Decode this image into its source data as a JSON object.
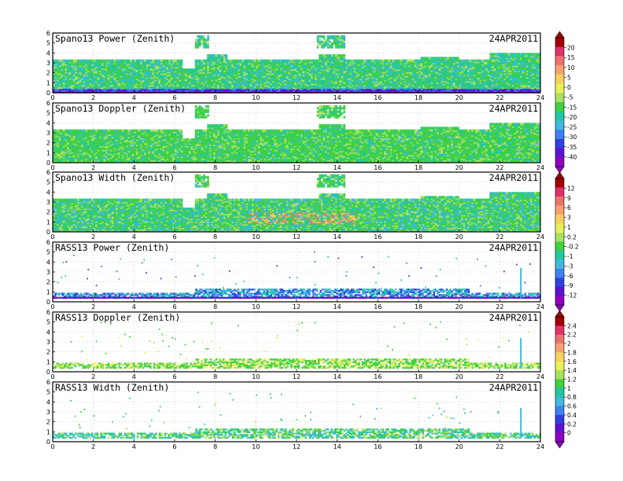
{
  "chart_data": [
    {
      "type": "heatmap",
      "title": "Spano13 Power (Zenith)",
      "date": "24APR2011",
      "x": [
        0,
        2,
        4,
        6,
        8,
        10,
        12,
        14,
        16,
        18,
        20,
        22,
        24
      ],
      "y": [
        0,
        1,
        2,
        3,
        4,
        5,
        6
      ],
      "xlim": [
        0,
        24
      ],
      "ylim": [
        0,
        6
      ],
      "colorbar": 0,
      "kind": "spano",
      "variable": "power"
    },
    {
      "type": "heatmap",
      "title": "Spano13 Doppler (Zenith)",
      "date": "24APR2011",
      "x": [
        0,
        2,
        4,
        6,
        8,
        10,
        12,
        14,
        16,
        18,
        20,
        22,
        24
      ],
      "y": [
        0,
        1,
        2,
        3,
        4,
        5,
        6
      ],
      "xlim": [
        0,
        24
      ],
      "ylim": [
        0,
        6
      ],
      "colorbar": null,
      "kind": "spano",
      "variable": "doppler"
    },
    {
      "type": "heatmap",
      "title": "Spano13 Width (Zenith)",
      "date": "24APR2011",
      "x": [
        0,
        2,
        4,
        6,
        8,
        10,
        12,
        14,
        16,
        18,
        20,
        22,
        24
      ],
      "y": [
        0,
        1,
        2,
        3,
        4,
        5,
        6
      ],
      "xlim": [
        0,
        24
      ],
      "ylim": [
        0,
        6
      ],
      "colorbar": 1,
      "kind": "spano",
      "variable": "width"
    },
    {
      "type": "heatmap",
      "title": "RASS13 Power (Zenith)",
      "date": "24APR2011",
      "x": [
        0,
        2,
        4,
        6,
        8,
        10,
        12,
        14,
        16,
        18,
        20,
        22,
        24
      ],
      "y": [
        0,
        1,
        2,
        3,
        4,
        5,
        6
      ],
      "xlim": [
        0,
        24
      ],
      "ylim": [
        0,
        6
      ],
      "colorbar": null,
      "kind": "rass",
      "variable": "power"
    },
    {
      "type": "heatmap",
      "title": "RASS13 Doppler (Zenith)",
      "date": "24APR2011",
      "x": [
        0,
        2,
        4,
        6,
        8,
        10,
        12,
        14,
        16,
        18,
        20,
        22,
        24
      ],
      "y": [
        0,
        1,
        2,
        3,
        4,
        5,
        6
      ],
      "xlim": [
        0,
        24
      ],
      "ylim": [
        0,
        6
      ],
      "colorbar": 2,
      "kind": "rass",
      "variable": "doppler"
    },
    {
      "type": "heatmap",
      "title": "RASS13 Width (Zenith)",
      "date": "24APR2011",
      "x": [
        0,
        2,
        4,
        6,
        8,
        10,
        12,
        14,
        16,
        18,
        20,
        22,
        24
      ],
      "y": [
        0,
        1,
        2,
        3,
        4,
        5,
        6
      ],
      "xlim": [
        0,
        24
      ],
      "ylim": [
        0,
        6
      ],
      "colorbar": null,
      "kind": "rass",
      "variable": "width"
    }
  ],
  "colorbars": [
    {
      "ticks": [
        "20",
        "15",
        "10",
        "5",
        "0",
        "-5",
        "-15",
        "-20",
        "-25",
        "-30",
        "-35",
        "-40"
      ],
      "colors": [
        "#a00000",
        "#e0306a",
        "#f07070",
        "#f8a070",
        "#f8d060",
        "#e8f058",
        "#a8e060",
        "#40d040",
        "#20c8a0",
        "#40b8e0",
        "#4080f0",
        "#3040e0",
        "#6010d0",
        "#9000c0"
      ]
    },
    {
      "ticks": [
        "12",
        "9",
        "6",
        "3",
        "1",
        "0.2",
        "-0.2",
        "-1",
        "-3",
        "-6",
        "-9",
        "-12"
      ],
      "colors": [
        "#a00000",
        "#e0306a",
        "#f07070",
        "#f8a070",
        "#f8d060",
        "#e8f058",
        "#a8e060",
        "#40d040",
        "#20c8a0",
        "#40b8e0",
        "#4080f0",
        "#3040e0",
        "#6010d0",
        "#9000c0"
      ]
    },
    {
      "ticks": [
        "2.4",
        "2.2",
        "2",
        "1.8",
        "1.6",
        "1.4",
        "1.2",
        "1",
        "0.8",
        "0.6",
        "0.4",
        "0.2",
        "0"
      ],
      "colors": [
        "#a00000",
        "#e0306a",
        "#f07070",
        "#f8a070",
        "#f8d060",
        "#e8f058",
        "#a8e060",
        "#40d040",
        "#20c8a0",
        "#40b8e0",
        "#4080f0",
        "#3040e0",
        "#6010d0",
        "#9000c0"
      ]
    }
  ]
}
